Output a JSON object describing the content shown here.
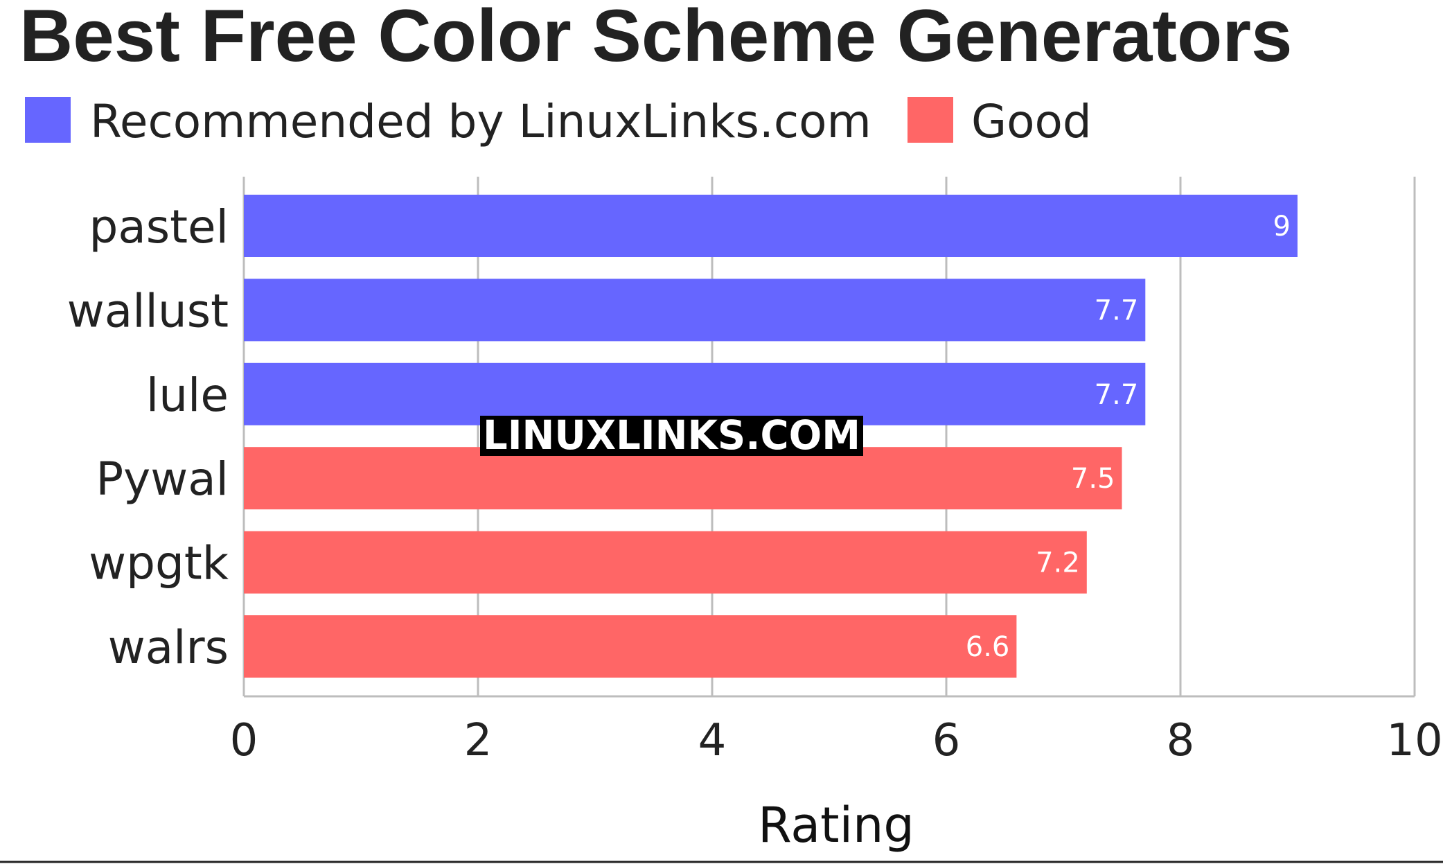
{
  "chart_data": {
    "type": "bar",
    "orientation": "horizontal",
    "title": "Best Free Color Scheme Generators",
    "xlabel": "Rating",
    "ylabel": "",
    "xlim": [
      0,
      10
    ],
    "x_ticks": [
      "0",
      "2",
      "4",
      "6",
      "8",
      "10"
    ],
    "grid": true,
    "legend_position": "top-left",
    "legend": [
      {
        "label": "Recommended by LinuxLinks.com",
        "color": "#6666ff"
      },
      {
        "label": "Good",
        "color": "#ff6666"
      }
    ],
    "categories": [
      "pastel",
      "wallust",
      "lule",
      "Pywal",
      "wpgtk",
      "walrs"
    ],
    "values": [
      9,
      7.7,
      7.7,
      7.5,
      7.2,
      6.6
    ],
    "value_labels": [
      "9",
      "7.7",
      "7.7",
      "7.5",
      "7.2",
      "6.6"
    ],
    "bar_groups": [
      "Recommended by LinuxLinks.com",
      "Recommended by LinuxLinks.com",
      "Recommended by LinuxLinks.com",
      "Good",
      "Good",
      "Good"
    ]
  },
  "watermark": "LINUXLINKS.COM"
}
